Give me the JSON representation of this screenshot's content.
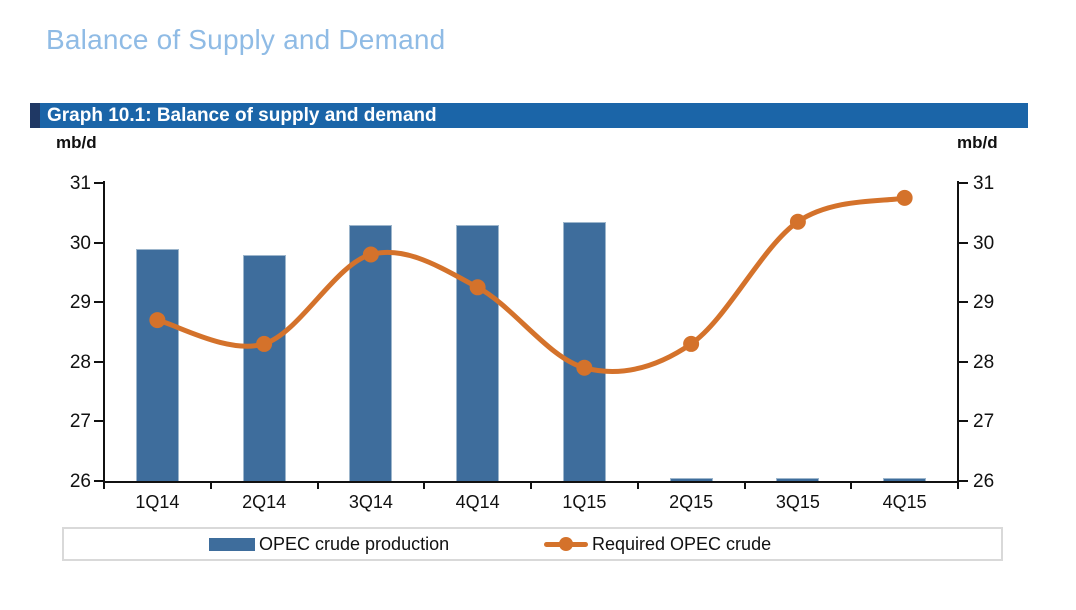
{
  "page": {
    "title": "Balance of Supply and Demand"
  },
  "graph": {
    "header": "Graph 10.1: Balance of supply and demand",
    "unit_left": "mb/d",
    "unit_right": "mb/d"
  },
  "colors": {
    "title_color": "#8FBBE5",
    "header_bg": "#1B65A8",
    "header_accent": "#1F3864",
    "bar_fill": "#3E6D9C",
    "bar_edge": "#9DB6CC",
    "line_color": "#D4722B",
    "axis_color": "#111111",
    "legend_border": "#D9D9D9"
  },
  "chart_data": {
    "type": "bar+line",
    "categories": [
      "1Q14",
      "2Q14",
      "3Q14",
      "4Q14",
      "1Q15",
      "2Q15",
      "3Q15",
      "4Q15"
    ],
    "series": [
      {
        "name": "OPEC crude production",
        "type": "bar",
        "color": "#3E6D9C",
        "values": [
          29.9,
          29.8,
          30.3,
          30.3,
          30.35,
          null,
          null,
          null
        ]
      },
      {
        "name": "Required OPEC crude",
        "type": "line",
        "color": "#D4722B",
        "values": [
          28.7,
          28.3,
          29.8,
          29.25,
          27.9,
          28.3,
          30.35,
          30.75
        ]
      }
    ],
    "ylabel_left": "mb/d",
    "ylabel_right": "mb/d",
    "ylim": [
      26,
      31
    ],
    "yticks": [
      26,
      27,
      28,
      29,
      30,
      31
    ],
    "grid": false,
    "legend_position": "bottom",
    "note": "null bar values are drawn as thin slivers at the axis baseline"
  }
}
